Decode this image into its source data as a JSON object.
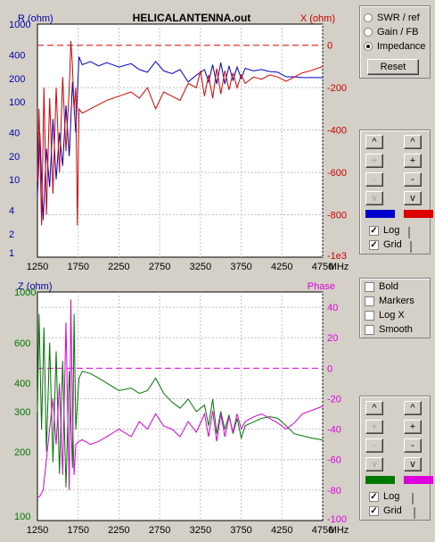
{
  "top_chart": {
    "title": "HELICALANTENNA.out",
    "left_label": "R (ohm)",
    "right_label": "X (ohm)",
    "left_ticks": [
      "1000",
      "400",
      "200",
      "100",
      "40",
      "20",
      "10",
      "4",
      "2",
      "1"
    ],
    "right_ticks": [
      "0",
      "-200",
      "-400",
      "-600",
      "-800",
      "-1e3"
    ],
    "x_ticks": [
      "1250",
      "1750",
      "2250",
      "2750",
      "3250",
      "3750",
      "4250",
      "4750"
    ],
    "x_unit": "MHz"
  },
  "bottom_chart": {
    "left_label": "Z (ohm)",
    "right_label": "Phase",
    "left_ticks": [
      "1000",
      "600",
      "400",
      "300",
      "200",
      "100"
    ],
    "right_ticks": [
      "40",
      "20",
      "0",
      "-20",
      "-40",
      "-60",
      "-80",
      "-100"
    ],
    "x_ticks": [
      "1250",
      "1750",
      "2250",
      "2750",
      "3250",
      "3750",
      "4250",
      "4750"
    ],
    "x_unit": "MHz"
  },
  "colors": {
    "r": "#0000cc",
    "x": "#dd0000",
    "z": "#007700",
    "phase": "#dd00dd",
    "left_axis": "#0000aa",
    "right_axis": "#cc0000",
    "grid": "#c0c0c0"
  },
  "chart_data": [
    {
      "type": "line",
      "title": "HELICALANTENNA.out",
      "xlabel": "MHz",
      "ylabel": "R (ohm)",
      "y2label": "X (ohm)",
      "xlim": [
        1250,
        4750
      ],
      "ylim": [
        1,
        1000
      ],
      "y_scale": "log",
      "y2lim": [
        -1000,
        100
      ],
      "grid": true,
      "series": [
        {
          "name": "R (ohm)",
          "axis": "left",
          "x": [
            1250,
            1280,
            1320,
            1360,
            1400,
            1440,
            1480,
            1520,
            1560,
            1600,
            1640,
            1680,
            1720,
            1760,
            1800,
            1900,
            2000,
            2100,
            2250,
            2400,
            2500,
            2600,
            2700,
            2800,
            2900,
            3000,
            3100,
            3200,
            3300,
            3350,
            3400,
            3450,
            3500,
            3550,
            3600,
            3650,
            3700,
            3750,
            3800,
            3900,
            4000,
            4100,
            4200,
            4300,
            4400,
            4500,
            4600,
            4750
          ],
          "y": [
            6,
            40,
            3,
            25,
            8,
            60,
            10,
            40,
            15,
            90,
            20,
            180,
            40,
            380,
            300,
            330,
            290,
            320,
            280,
            310,
            260,
            240,
            330,
            250,
            230,
            260,
            180,
            220,
            260,
            180,
            300,
            170,
            320,
            170,
            290,
            190,
            280,
            200,
            270,
            250,
            260,
            245,
            240,
            210,
            210,
            205,
            205,
            205
          ]
        },
        {
          "name": "X (ohm)",
          "axis": "right",
          "x": [
            1250,
            1270,
            1300,
            1330,
            1360,
            1400,
            1440,
            1480,
            1520,
            1560,
            1600,
            1640,
            1660,
            1680,
            1700,
            1720,
            1740,
            1760,
            1800,
            1900,
            2000,
            2100,
            2250,
            2400,
            2500,
            2600,
            2700,
            2800,
            2900,
            3000,
            3100,
            3200,
            3250,
            3300,
            3350,
            3400,
            3450,
            3500,
            3550,
            3600,
            3650,
            3700,
            3750,
            3800,
            3900,
            4000,
            4100,
            4200,
            4300,
            4400,
            4500,
            4600,
            4750
          ],
          "y": [
            -640,
            -300,
            -850,
            -200,
            -800,
            -250,
            -700,
            -200,
            -600,
            -150,
            -500,
            -200,
            20,
            -100,
            -300,
            -200,
            -850,
            -300,
            -320,
            -300,
            -280,
            -260,
            -240,
            -220,
            -250,
            -200,
            -300,
            -220,
            -240,
            -260,
            -180,
            -200,
            -120,
            -240,
            -140,
            -250,
            -110,
            -230,
            -120,
            -210,
            -130,
            -200,
            -140,
            -180,
            -150,
            -160,
            -140,
            -150,
            -170,
            -150,
            -130,
            -120,
            -100
          ]
        }
      ]
    },
    {
      "type": "line",
      "xlabel": "MHz",
      "ylabel": "Z (ohm)",
      "y2label": "Phase",
      "xlim": [
        1250,
        4750
      ],
      "ylim": [
        100,
        1000
      ],
      "y_scale": "log",
      "y2lim": [
        -100,
        50
      ],
      "grid": true,
      "series": [
        {
          "name": "Z (ohm)",
          "axis": "left",
          "x": [
            1250,
            1270,
            1300,
            1330,
            1360,
            1400,
            1440,
            1480,
            1520,
            1560,
            1600,
            1640,
            1680,
            1700,
            1720,
            1760,
            1800,
            1900,
            2000,
            2100,
            2250,
            2400,
            2500,
            2600,
            2700,
            2800,
            2900,
            3000,
            3100,
            3200,
            3300,
            3350,
            3400,
            3450,
            3500,
            3550,
            3600,
            3650,
            3700,
            3750,
            3800,
            3900,
            4000,
            4100,
            4200,
            4300,
            4400,
            4500,
            4600,
            4750
          ],
          "y": [
            300,
            800,
            250,
            700,
            200,
            600,
            180,
            550,
            160,
            500,
            140,
            450,
            170,
            800,
            250,
            420,
            450,
            440,
            420,
            400,
            370,
            380,
            360,
            370,
            420,
            360,
            330,
            310,
            340,
            300,
            320,
            260,
            340,
            240,
            300,
            250,
            290,
            240,
            280,
            230,
            260,
            270,
            280,
            285,
            280,
            260,
            240,
            235,
            230,
            225
          ]
        },
        {
          "name": "Phase",
          "axis": "right",
          "x": [
            1250,
            1280,
            1320,
            1360,
            1400,
            1440,
            1480,
            1520,
            1560,
            1600,
            1640,
            1660,
            1680,
            1700,
            1720,
            1760,
            1800,
            1900,
            2000,
            2100,
            2250,
            2400,
            2500,
            2600,
            2700,
            2800,
            2900,
            3000,
            3100,
            3200,
            3300,
            3350,
            3400,
            3450,
            3500,
            3550,
            3600,
            3650,
            3700,
            3750,
            3800,
            3900,
            4000,
            4100,
            4200,
            4300,
            4400,
            4500,
            4600,
            4750
          ],
          "y": [
            -85,
            -84,
            -80,
            -60,
            -40,
            -20,
            -50,
            -10,
            -70,
            30,
            -80,
            45,
            -30,
            -70,
            -50,
            -48,
            -47,
            -50,
            -48,
            -45,
            -40,
            -45,
            -35,
            -40,
            -30,
            -38,
            -40,
            -45,
            -35,
            -42,
            -30,
            -45,
            -28,
            -48,
            -30,
            -45,
            -32,
            -42,
            -30,
            -40,
            -35,
            -32,
            -30,
            -33,
            -36,
            -40,
            -36,
            -30,
            -28,
            -25
          ]
        }
      ]
    }
  ],
  "panel": {
    "modes": [
      {
        "label": "SWR / ref",
        "selected": false
      },
      {
        "label": "Gain / FB",
        "selected": false
      },
      {
        "label": "Impedance",
        "selected": true
      }
    ],
    "reset": "Reset",
    "options": [
      {
        "label": "Bold",
        "checked": false
      },
      {
        "label": "Markers",
        "checked": false
      },
      {
        "label": "Log X",
        "checked": false
      },
      {
        "label": "Smooth",
        "checked": false
      }
    ],
    "ctrl": {
      "up_small": "^",
      "up_large": "^",
      "plus": "+",
      "minus": "-",
      "down_small": "v",
      "down_large": "v",
      "log": "Log",
      "grid": "Grid"
    }
  }
}
